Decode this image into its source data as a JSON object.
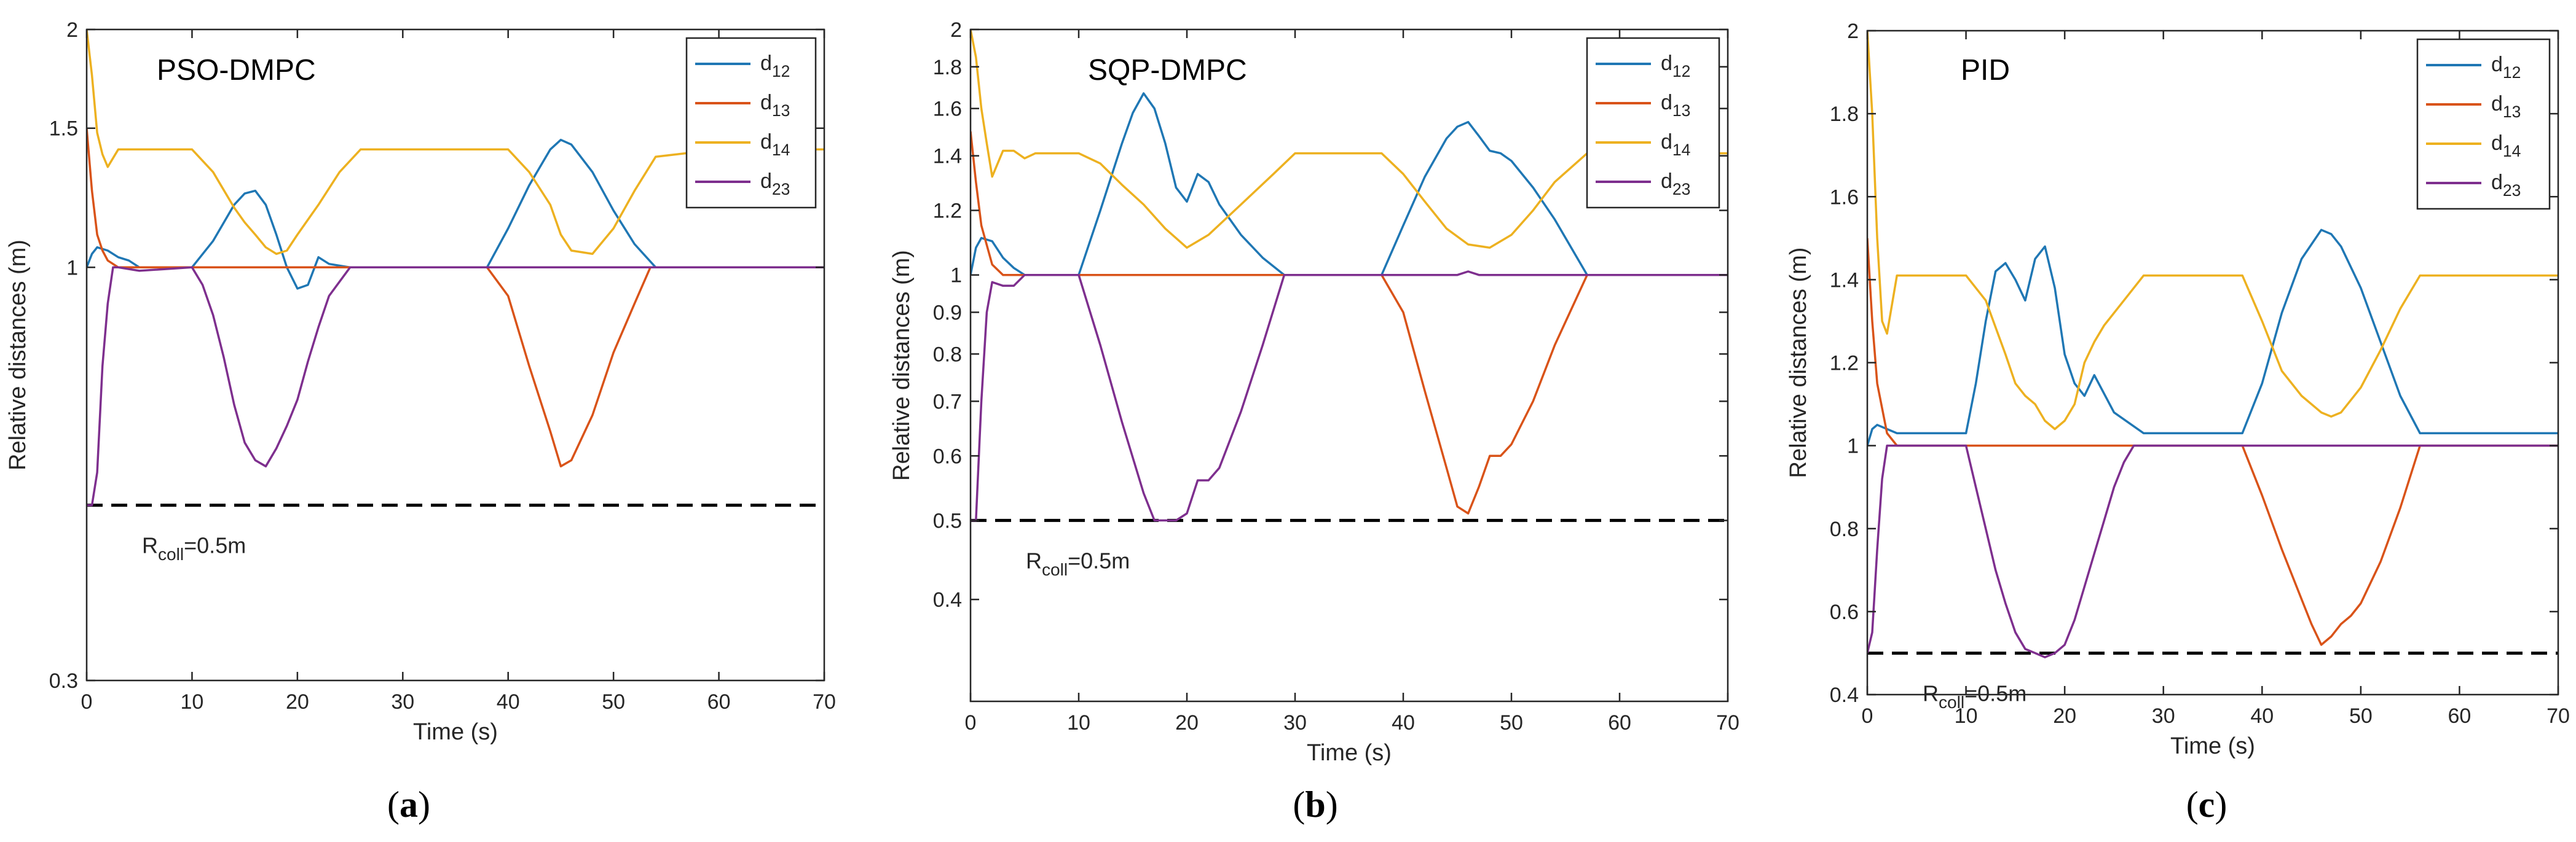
{
  "figure": {
    "captions": [
      "(a)",
      "(b)",
      "(c)"
    ]
  },
  "colors": {
    "d12": "#1f77b4",
    "d13": "#d95319",
    "d14": "#edb120",
    "d23": "#7e2f8e",
    "axis": "#262626",
    "ref": "#000000"
  },
  "chart_data": [
    {
      "type": "line",
      "title": "PSO-DMPC",
      "xlabel": "Time (s)",
      "ylabel": "Relative distances (m)",
      "xlim": [
        0,
        70
      ],
      "ylim": [
        0.3,
        2
      ],
      "xticks": [
        0,
        10,
        20,
        30,
        40,
        50,
        60,
        70
      ],
      "yticks": [
        0.3,
        1,
        1.5,
        2
      ],
      "ytick_labels": [
        "0.3",
        "1",
        "1.5",
        "2"
      ],
      "log_y": true,
      "grid": false,
      "legend_position": "top-right",
      "reference": {
        "y": 0.5,
        "style": "dashed",
        "label_main": "R",
        "label_sub": "coll",
        "label_tail": "=0.5m"
      },
      "series": [
        {
          "key": "d12",
          "name_main": "d",
          "name_sub": "12",
          "x": [
            0,
            0.5,
            1,
            2,
            3,
            4,
            5,
            7,
            10,
            12,
            14,
            15,
            16,
            17,
            18,
            19,
            20,
            21,
            22,
            23,
            25,
            30,
            35,
            38,
            40,
            42,
            44,
            45,
            46,
            48,
            50,
            52,
            54,
            56,
            60,
            65,
            70
          ],
          "y": [
            1.0,
            1.04,
            1.06,
            1.05,
            1.03,
            1.02,
            1.0,
            1.0,
            1.0,
            1.08,
            1.2,
            1.24,
            1.25,
            1.2,
            1.1,
            1.0,
            0.94,
            0.95,
            1.03,
            1.01,
            1.0,
            1.0,
            1.0,
            1.0,
            1.12,
            1.27,
            1.41,
            1.45,
            1.43,
            1.32,
            1.18,
            1.07,
            1.0,
            1.0,
            1.0,
            1.0,
            1.0
          ]
        },
        {
          "key": "d13",
          "name_main": "d",
          "name_sub": "13",
          "x": [
            0,
            0.5,
            1,
            1.5,
            2,
            3,
            4,
            5,
            10,
            20,
            30,
            38,
            40,
            42,
            44,
            45,
            46,
            48,
            50,
            52,
            53.5,
            55,
            60,
            70
          ],
          "y": [
            1.5,
            1.25,
            1.1,
            1.05,
            1.02,
            1.0,
            1.0,
            1.0,
            1.0,
            1.0,
            1.0,
            1.0,
            0.92,
            0.75,
            0.62,
            0.56,
            0.57,
            0.65,
            0.78,
            0.9,
            1.0,
            1.0,
            1.0,
            1.0
          ]
        },
        {
          "key": "d14",
          "name_main": "d",
          "name_sub": "14",
          "x": [
            0,
            0.5,
            1,
            1.5,
            2,
            3,
            5,
            10,
            12,
            14,
            15,
            16,
            17,
            18,
            19,
            20,
            22,
            24,
            26,
            30,
            35,
            40,
            42,
            44,
            45,
            46,
            48,
            50,
            52,
            54,
            60,
            65,
            70
          ],
          "y": [
            2.0,
            1.75,
            1.48,
            1.39,
            1.34,
            1.41,
            1.41,
            1.41,
            1.32,
            1.19,
            1.14,
            1.1,
            1.06,
            1.04,
            1.05,
            1.1,
            1.2,
            1.32,
            1.41,
            1.41,
            1.41,
            1.41,
            1.32,
            1.2,
            1.1,
            1.05,
            1.04,
            1.12,
            1.25,
            1.38,
            1.41,
            1.41,
            1.41
          ]
        },
        {
          "key": "d23",
          "name_main": "d",
          "name_sub": "23",
          "x": [
            0,
            0.5,
            1,
            1.5,
            2,
            2.5,
            3,
            5,
            10,
            11,
            12,
            13,
            14,
            15,
            16,
            17,
            18,
            19,
            20,
            21,
            22,
            23,
            25,
            30,
            40,
            50,
            60,
            70
          ],
          "y": [
            0.5,
            0.5,
            0.55,
            0.75,
            0.9,
            1.0,
            1.0,
            0.99,
            1.0,
            0.95,
            0.87,
            0.77,
            0.67,
            0.6,
            0.57,
            0.56,
            0.59,
            0.63,
            0.68,
            0.76,
            0.84,
            0.92,
            1.0,
            1.0,
            1.0,
            1.0,
            1.0,
            1.0
          ]
        }
      ]
    },
    {
      "type": "line",
      "title": "SQP-DMPC",
      "xlabel": "Time (s)",
      "ylabel": "Relative distances (m)",
      "xlim": [
        0,
        70
      ],
      "ylim": [
        0.3,
        2
      ],
      "xticks": [
        0,
        10,
        20,
        30,
        40,
        50,
        60,
        70
      ],
      "yticks": [
        0.4,
        0.5,
        0.6,
        0.7,
        0.8,
        0.9,
        1,
        1.2,
        1.4,
        1.6,
        1.8,
        2
      ],
      "ytick_labels": [
        "0.4",
        "0.5",
        "0.6",
        "0.7",
        "0.8",
        "0.9",
        "1",
        "1.2",
        "1.4",
        "1.6",
        "1.8",
        "2"
      ],
      "log_y": true,
      "grid": false,
      "legend_position": "top-right",
      "reference": {
        "y": 0.5,
        "style": "dashed",
        "label_main": "R",
        "label_sub": "coll",
        "label_tail": "=0.5m"
      },
      "series": [
        {
          "key": "d12",
          "name_main": "d",
          "name_sub": "12",
          "x": [
            0,
            0.5,
            1,
            2,
            3,
            4,
            5,
            7,
            10,
            12,
            14,
            15,
            16,
            17,
            18,
            19,
            20,
            21,
            22,
            23,
            25,
            27,
            29,
            35,
            38,
            40,
            42,
            44,
            45,
            46,
            47,
            48,
            49,
            50,
            52,
            54,
            57,
            60,
            70
          ],
          "y": [
            1.0,
            1.08,
            1.11,
            1.1,
            1.05,
            1.02,
            1.0,
            1.0,
            1.0,
            1.2,
            1.45,
            1.58,
            1.67,
            1.6,
            1.45,
            1.28,
            1.23,
            1.33,
            1.3,
            1.22,
            1.12,
            1.05,
            1.0,
            1.0,
            1.0,
            1.15,
            1.32,
            1.47,
            1.52,
            1.54,
            1.48,
            1.42,
            1.41,
            1.38,
            1.28,
            1.17,
            1.0,
            1.0,
            1.0
          ]
        },
        {
          "key": "d13",
          "name_main": "d",
          "name_sub": "13",
          "x": [
            0,
            0.5,
            1,
            2,
            3,
            4,
            5,
            10,
            20,
            30,
            38,
            40,
            42,
            44,
            45,
            46,
            47,
            48,
            49,
            50,
            52,
            54,
            57,
            60,
            70
          ],
          "y": [
            1.5,
            1.3,
            1.15,
            1.03,
            1.0,
            1.0,
            1.0,
            1.0,
            1.0,
            1.0,
            1.0,
            0.9,
            0.72,
            0.58,
            0.52,
            0.51,
            0.55,
            0.6,
            0.6,
            0.62,
            0.7,
            0.82,
            1.0,
            1.0,
            1.0
          ]
        },
        {
          "key": "d14",
          "name_main": "d",
          "name_sub": "14",
          "x": [
            0,
            0.5,
            1,
            1.5,
            2,
            3,
            4,
            5,
            6,
            10,
            12,
            14,
            16,
            18,
            20,
            22,
            25,
            28,
            30,
            35,
            38,
            40,
            42,
            44,
            46,
            48,
            50,
            52,
            54,
            57,
            60,
            70
          ],
          "y": [
            2.0,
            1.85,
            1.6,
            1.45,
            1.32,
            1.42,
            1.42,
            1.39,
            1.41,
            1.41,
            1.37,
            1.29,
            1.22,
            1.14,
            1.08,
            1.12,
            1.22,
            1.33,
            1.41,
            1.41,
            1.41,
            1.33,
            1.23,
            1.14,
            1.09,
            1.08,
            1.12,
            1.2,
            1.3,
            1.41,
            1.41,
            1.41
          ]
        },
        {
          "key": "d23",
          "name_main": "d",
          "name_sub": "23",
          "x": [
            0,
            0.5,
            1,
            1.5,
            2,
            3,
            4,
            5,
            10,
            12,
            14,
            16,
            17,
            18,
            19,
            20,
            21,
            22,
            23,
            25,
            27,
            29,
            35,
            40,
            45,
            46,
            47,
            50,
            60,
            70
          ],
          "y": [
            0.5,
            0.5,
            0.7,
            0.9,
            0.98,
            0.97,
            0.97,
            1.0,
            1.0,
            0.82,
            0.66,
            0.54,
            0.5,
            0.5,
            0.5,
            0.51,
            0.56,
            0.56,
            0.58,
            0.68,
            0.82,
            1.0,
            1.0,
            1.0,
            1.0,
            1.01,
            1.0,
            1.0,
            1.0,
            1.0
          ]
        }
      ]
    },
    {
      "type": "line",
      "title": "PID",
      "xlabel": "Time (s)",
      "ylabel": "Relative distances (m)",
      "xlim": [
        0,
        70
      ],
      "ylim": [
        0.4,
        2
      ],
      "xticks": [
        0,
        10,
        20,
        30,
        40,
        50,
        60,
        70
      ],
      "yticks": [
        0.4,
        0.6,
        0.8,
        1,
        1.2,
        1.4,
        1.6,
        1.8,
        2
      ],
      "ytick_labels": [
        "0.4",
        "0.6",
        "0.8",
        "1",
        "1.2",
        "1.4",
        "1.6",
        "1.8",
        "2"
      ],
      "log_y": false,
      "grid": false,
      "legend_position": "top-right",
      "reference": {
        "y": 0.5,
        "style": "dashed",
        "label_main": "R",
        "label_sub": "coll",
        "label_tail": "=0.5m"
      },
      "series": [
        {
          "key": "d12",
          "name_main": "d",
          "name_sub": "12",
          "x": [
            0,
            0.5,
            1,
            2,
            3,
            5,
            8,
            10,
            11,
            12,
            13,
            14,
            15,
            16,
            17,
            18,
            19,
            20,
            21,
            22,
            23,
            25,
            28,
            30,
            35,
            38,
            40,
            42,
            44,
            46,
            47,
            48,
            50,
            52,
            54,
            56,
            60,
            65,
            70
          ],
          "y": [
            1.0,
            1.04,
            1.05,
            1.04,
            1.03,
            1.03,
            1.03,
            1.03,
            1.15,
            1.3,
            1.42,
            1.44,
            1.4,
            1.35,
            1.45,
            1.48,
            1.38,
            1.22,
            1.15,
            1.12,
            1.17,
            1.08,
            1.03,
            1.03,
            1.03,
            1.03,
            1.15,
            1.32,
            1.45,
            1.52,
            1.51,
            1.48,
            1.38,
            1.25,
            1.12,
            1.03,
            1.03,
            1.03,
            1.03
          ]
        },
        {
          "key": "d13",
          "name_main": "d",
          "name_sub": "13",
          "x": [
            0,
            0.5,
            1,
            2,
            3,
            5,
            10,
            20,
            30,
            38,
            40,
            42,
            44,
            45,
            46,
            47,
            48,
            49,
            50,
            52,
            54,
            56,
            60,
            70
          ],
          "y": [
            1.5,
            1.3,
            1.15,
            1.03,
            1.0,
            1.0,
            1.0,
            1.0,
            1.0,
            1.0,
            0.88,
            0.75,
            0.63,
            0.57,
            0.52,
            0.54,
            0.57,
            0.59,
            0.62,
            0.72,
            0.85,
            1.0,
            1.0,
            1.0
          ]
        },
        {
          "key": "d14",
          "name_main": "d",
          "name_sub": "14",
          "x": [
            0,
            0.5,
            1,
            1.5,
            2,
            3,
            5,
            10,
            12,
            14,
            15,
            16,
            17,
            18,
            19,
            20,
            21,
            22,
            23,
            24,
            26,
            28,
            30,
            35,
            38,
            40,
            42,
            44,
            46,
            47,
            48,
            50,
            52,
            54,
            56,
            60,
            65,
            70
          ],
          "y": [
            2.0,
            1.8,
            1.5,
            1.3,
            1.27,
            1.41,
            1.41,
            1.41,
            1.35,
            1.22,
            1.15,
            1.12,
            1.1,
            1.06,
            1.04,
            1.06,
            1.1,
            1.2,
            1.25,
            1.29,
            1.35,
            1.41,
            1.41,
            1.41,
            1.41,
            1.3,
            1.18,
            1.12,
            1.08,
            1.07,
            1.08,
            1.14,
            1.23,
            1.33,
            1.41,
            1.41,
            1.41,
            1.41
          ]
        },
        {
          "key": "d23",
          "name_main": "d",
          "name_sub": "23",
          "x": [
            0,
            0.5,
            1,
            1.5,
            2,
            3,
            5,
            10,
            11,
            12,
            13,
            14,
            15,
            16,
            17,
            18,
            19,
            20,
            21,
            22,
            23,
            24,
            25,
            26,
            27,
            30,
            40,
            50,
            60,
            70
          ],
          "y": [
            0.5,
            0.55,
            0.75,
            0.92,
            1.0,
            1.0,
            1.0,
            1.0,
            0.9,
            0.8,
            0.7,
            0.62,
            0.55,
            0.51,
            0.5,
            0.49,
            0.5,
            0.52,
            0.58,
            0.66,
            0.74,
            0.82,
            0.9,
            0.96,
            1.0,
            1.0,
            1.0,
            1.0,
            1.0,
            1.0
          ]
        }
      ]
    }
  ]
}
